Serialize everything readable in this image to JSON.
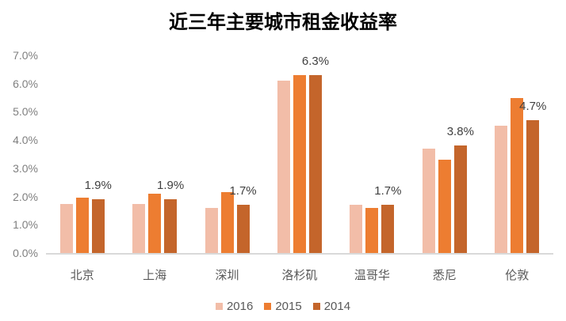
{
  "chart_data": {
    "type": "bar",
    "title": "近三年主要城市租金收益率",
    "categories": [
      "北京",
      "上海",
      "深圳",
      "洛杉矶",
      "温哥华",
      "悉尼",
      "伦敦"
    ],
    "series": [
      {
        "name": "2016",
        "color": "#F2BDA8",
        "values": [
          1.75,
          1.75,
          1.6,
          6.1,
          1.7,
          3.7,
          4.5
        ]
      },
      {
        "name": "2015",
        "color": "#ED7D31",
        "values": [
          1.95,
          2.1,
          2.15,
          6.3,
          1.6,
          3.3,
          5.5
        ]
      },
      {
        "name": "2014",
        "color": "#C4652B",
        "values": [
          1.9,
          1.9,
          1.7,
          6.3,
          1.7,
          3.8,
          4.7
        ]
      }
    ],
    "data_labels": {
      "series": "2014",
      "values": [
        "1.9%",
        "1.9%",
        "1.7%",
        "6.3%",
        "1.7%",
        "3.8%",
        "4.7%"
      ]
    },
    "y_axis": {
      "min": 0,
      "max": 7,
      "ticks": [
        "7.0%",
        "6.0%",
        "5.0%",
        "4.0%",
        "3.0%",
        "2.0%",
        "1.0%",
        "0.0%"
      ]
    },
    "legend": {
      "position": "bottom",
      "items": [
        "2016",
        "2015",
        "2014"
      ]
    },
    "grid": false,
    "colors": {
      "background": "#FFFFFF",
      "axis_line": "#D9D9D9",
      "tick_text": "#7F7F7F",
      "category_text": "#595959",
      "legend_text": "#595959",
      "data_label_text": "#404040",
      "title_text": "#000000"
    }
  }
}
